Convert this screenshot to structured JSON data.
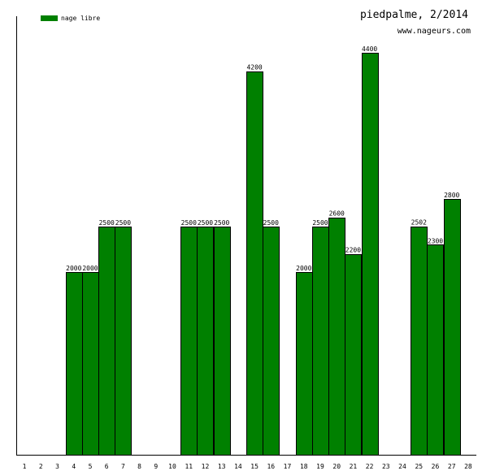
{
  "chart_data": {
    "type": "bar",
    "title": "piedpalme, 2/2014",
    "subtitle": "www.nageurs.com",
    "xlabel": "",
    "ylabel": "",
    "legend": {
      "label": "nage libre",
      "placement": "top-left"
    },
    "color": "#008000",
    "ylim": [
      0,
      4800
    ],
    "grid": false,
    "categories": [
      "1",
      "2",
      "3",
      "4",
      "5",
      "6",
      "7",
      "8",
      "9",
      "10",
      "11",
      "12",
      "13",
      "14",
      "15",
      "16",
      "17",
      "18",
      "19",
      "20",
      "21",
      "22",
      "23",
      "24",
      "25",
      "26",
      "27",
      "28"
    ],
    "series": [
      {
        "name": "nage libre",
        "values": [
          null,
          null,
          null,
          2000,
          2000,
          2500,
          2500,
          null,
          null,
          null,
          2500,
          2500,
          2500,
          null,
          4200,
          2500,
          null,
          2000,
          2500,
          2600,
          2200,
          4400,
          null,
          null,
          2502,
          2300,
          2800,
          null
        ]
      }
    ]
  }
}
